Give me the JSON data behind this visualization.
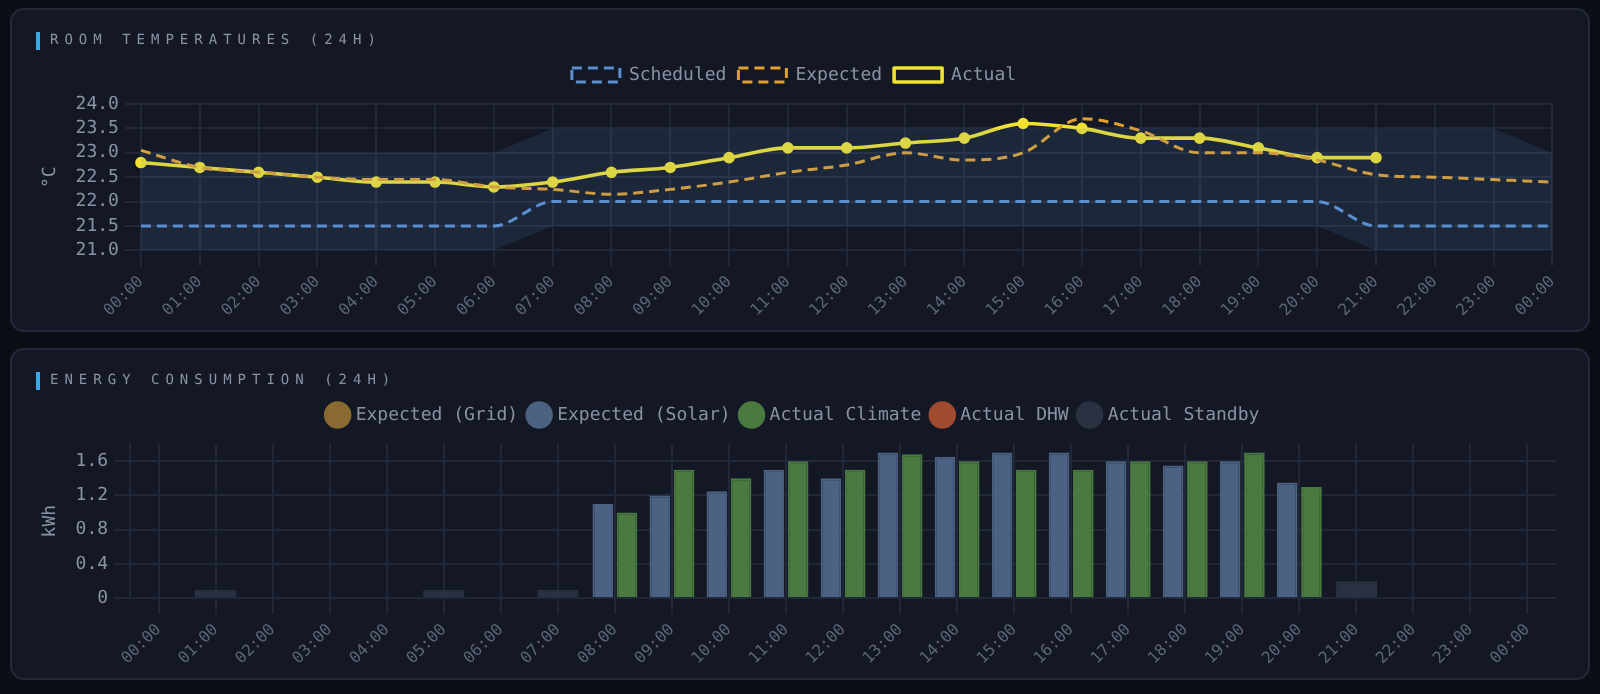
{
  "chart_data": [
    {
      "type": "line",
      "title": "ROOM TEMPERATURES (24H)",
      "ylabel": "°C",
      "categories": [
        "00:00",
        "01:00",
        "02:00",
        "03:00",
        "04:00",
        "05:00",
        "06:00",
        "07:00",
        "08:00",
        "09:00",
        "10:00",
        "11:00",
        "12:00",
        "13:00",
        "14:00",
        "15:00",
        "16:00",
        "17:00",
        "18:00",
        "19:00",
        "20:00",
        "21:00",
        "22:00",
        "23:00",
        "00:00"
      ],
      "ylim": [
        21,
        24
      ],
      "yticks": [
        {
          "value": 21,
          "label": "21.0"
        },
        21.5,
        {
          "value": 22,
          "label": "22.0"
        },
        22.5,
        {
          "value": 23,
          "label": "23.0"
        },
        23.5,
        {
          "value": 24,
          "label": "24.0"
        }
      ],
      "grid": true,
      "legend": "top",
      "series": [
        {
          "name": "Scheduled",
          "color": "#5b8fd0",
          "line_style": "dashed",
          "marker": "none",
          "values": [
            21.5,
            21.5,
            21.5,
            21.5,
            21.5,
            21.5,
            21.5,
            22,
            22,
            22,
            22,
            22,
            22,
            22,
            22,
            22,
            22,
            22,
            22,
            22,
            22,
            21.5,
            21.5,
            21.5,
            21.5
          ],
          "lower": [
            21,
            21,
            21,
            21,
            21,
            21,
            21,
            21.5,
            21.5,
            21.5,
            21.5,
            21.5,
            21.5,
            21.5,
            21.5,
            21.5,
            21.5,
            21.5,
            21.5,
            21.5,
            21.5,
            21,
            21,
            21,
            21
          ],
          "upper": [
            23,
            23,
            23,
            23,
            23,
            23,
            23,
            23.5,
            23.5,
            23.5,
            23.5,
            23.5,
            23.5,
            23.5,
            23.5,
            23.5,
            23.5,
            23.5,
            23.5,
            23.5,
            23.5,
            23.5,
            23.5,
            23.5,
            23
          ]
        },
        {
          "name": "Expected",
          "color": "#e0a030",
          "line_style": "dashed",
          "marker": "none",
          "values": [
            23.05,
            22.7,
            22.6,
            22.5,
            22.45,
            22.45,
            22.3,
            22.25,
            22.15,
            22.25,
            22.4,
            22.6,
            22.75,
            23,
            22.85,
            23,
            23.7,
            23.45,
            23,
            23,
            22.85,
            22.55,
            22.5,
            22.45,
            22.4
          ]
        },
        {
          "name": "Actual",
          "color": "#f0e030",
          "line_style": "solid",
          "marker": "circle",
          "values": [
            22.8,
            22.7,
            22.6,
            22.5,
            22.4,
            22.4,
            22.3,
            22.4,
            22.6,
            22.7,
            22.9,
            23.1,
            23.1,
            23.2,
            23.3,
            23.6,
            23.5,
            23.3,
            23.3,
            23.1,
            22.9,
            22.9,
            null,
            null,
            null
          ]
        }
      ]
    },
    {
      "type": "bar",
      "title": "ENERGY CONSUMPTION (24H)",
      "ylabel": "kWh",
      "categories": [
        "00:00",
        "01:00",
        "02:00",
        "03:00",
        "04:00",
        "05:00",
        "06:00",
        "07:00",
        "08:00",
        "09:00",
        "10:00",
        "11:00",
        "12:00",
        "13:00",
        "14:00",
        "15:00",
        "16:00",
        "17:00",
        "18:00",
        "19:00",
        "20:00",
        "21:00",
        "22:00",
        "23:00",
        "00:00"
      ],
      "ylim": [
        0,
        1.8
      ],
      "yticks": [
        0,
        0.4,
        0.8,
        1.2,
        1.6
      ],
      "grid": true,
      "legend": "top",
      "series": [
        {
          "name": "Expected (Grid)",
          "color": "#8a6a30",
          "values": [
            null,
            null,
            null,
            null,
            null,
            null,
            null,
            null,
            null,
            null,
            null,
            null,
            null,
            null,
            null,
            null,
            null,
            null,
            null,
            null,
            null,
            null,
            null,
            null,
            null
          ]
        },
        {
          "name": "Expected (Solar)",
          "color": "#4b6282",
          "values": [
            null,
            null,
            null,
            null,
            null,
            null,
            null,
            null,
            1.1,
            1.2,
            1.25,
            1.5,
            1.4,
            1.7,
            1.65,
            1.7,
            1.7,
            1.6,
            1.55,
            1.6,
            1.35,
            null,
            null,
            null,
            null
          ]
        },
        {
          "name": "Actual Climate",
          "color": "#4a7a40",
          "values": [
            null,
            null,
            null,
            null,
            null,
            null,
            null,
            null,
            1,
            1.5,
            1.4,
            1.6,
            1.5,
            1.68,
            1.6,
            1.5,
            1.5,
            1.6,
            1.6,
            1.7,
            1.3,
            null,
            null,
            null,
            null
          ]
        },
        {
          "name": "Actual DHW",
          "color": "#a04a30",
          "values": [
            null,
            null,
            null,
            null,
            null,
            null,
            null,
            null,
            null,
            null,
            null,
            null,
            null,
            null,
            null,
            null,
            null,
            null,
            null,
            null,
            null,
            null,
            null,
            null,
            null
          ]
        },
        {
          "name": "Actual Standby",
          "color": "#2a3242",
          "values": [
            null,
            0.1,
            null,
            null,
            null,
            0.1,
            null,
            0.1,
            null,
            null,
            null,
            null,
            null,
            null,
            null,
            null,
            null,
            null,
            null,
            null,
            null,
            0.2,
            null,
            null,
            null
          ]
        }
      ]
    }
  ]
}
